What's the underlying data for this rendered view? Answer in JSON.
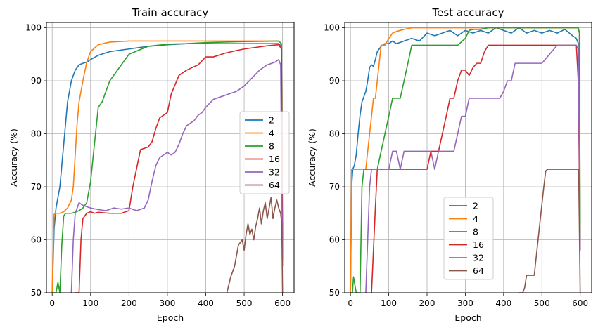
{
  "chart_data": [
    {
      "type": "line",
      "title": "Train accuracy",
      "xlabel": "Epoch",
      "ylabel": "Accuracy (%)",
      "xlim": [
        -15,
        630
      ],
      "ylim": [
        50,
        101
      ],
      "xticks": [
        0,
        100,
        200,
        300,
        400,
        500,
        600
      ],
      "yticks": [
        50,
        60,
        70,
        80,
        90,
        100
      ],
      "grid": true,
      "legend": "center-right",
      "series": [
        {
          "name": "2",
          "color": "#1f77b4",
          "x": [
            0,
            5,
            10,
            20,
            30,
            40,
            50,
            60,
            70,
            80,
            90,
            100,
            120,
            150,
            200,
            250,
            300,
            350,
            400,
            450,
            500,
            550,
            590,
            597,
            600
          ],
          "y": [
            50,
            62,
            66,
            70,
            78,
            86,
            90,
            92,
            93,
            93.3,
            93.5,
            94,
            94.8,
            95.5,
            96,
            96.5,
            96.8,
            97,
            97,
            97,
            97,
            97,
            97,
            96.5,
            60
          ]
        },
        {
          "name": "4",
          "color": "#ff7f0e",
          "x": [
            0,
            5,
            10,
            20,
            30,
            40,
            50,
            55,
            60,
            65,
            70,
            75,
            80,
            90,
            100,
            120,
            150,
            200,
            300,
            400,
            500,
            590,
            597,
            600
          ],
          "y": [
            50,
            64.8,
            65,
            65,
            65.3,
            66,
            67.5,
            70,
            76,
            82,
            86,
            88,
            90,
            93.5,
            95.5,
            96.8,
            97.3,
            97.5,
            97.5,
            97.5,
            97.5,
            97.5,
            97,
            58
          ]
        },
        {
          "name": "8",
          "color": "#2ca02c",
          "x": [
            0,
            10,
            15,
            20,
            25,
            30,
            35,
            40,
            50,
            60,
            70,
            80,
            90,
            100,
            110,
            120,
            130,
            150,
            180,
            200,
            250,
            300,
            350,
            400,
            500,
            590,
            597,
            600
          ],
          "y": [
            50,
            50,
            52,
            50,
            59,
            64.5,
            65,
            65,
            65,
            65.2,
            65.5,
            66,
            67,
            71,
            78,
            85,
            86,
            90,
            93,
            95,
            96.5,
            96.9,
            97,
            97.2,
            97.4,
            97.5,
            97,
            60
          ]
        },
        {
          "name": "16",
          "color": "#d62728",
          "x": [
            60,
            70,
            75,
            80,
            90,
            100,
            110,
            120,
            150,
            180,
            200,
            210,
            230,
            250,
            260,
            270,
            280,
            300,
            310,
            330,
            340,
            350,
            380,
            400,
            420,
            450,
            480,
            500,
            530,
            560,
            590,
            597,
            600
          ],
          "y": [
            50,
            50,
            60,
            64,
            65,
            65.3,
            65,
            65.2,
            65,
            65,
            65.5,
            70,
            77,
            77.5,
            78.5,
            81,
            83,
            84,
            87.5,
            91,
            91.5,
            92,
            93,
            94.5,
            94.5,
            95.2,
            95.7,
            96,
            96.3,
            96.6,
            96.8,
            96,
            56
          ]
        },
        {
          "name": "32",
          "color": "#9467bd",
          "x": [
            50,
            55,
            60,
            65,
            70,
            80,
            100,
            120,
            140,
            160,
            180,
            200,
            220,
            240,
            250,
            260,
            270,
            280,
            290,
            300,
            310,
            320,
            330,
            340,
            350,
            360,
            370,
            380,
            390,
            400,
            420,
            440,
            460,
            480,
            500,
            520,
            540,
            560,
            580,
            590,
            595,
            600
          ],
          "y": [
            50,
            60,
            65,
            66,
            67,
            66.5,
            66,
            65.7,
            65.5,
            66,
            65.8,
            66,
            65.5,
            66,
            67.5,
            71,
            74,
            75.5,
            76,
            76.5,
            76,
            76.5,
            78,
            80,
            81.5,
            82,
            82.5,
            83.5,
            84,
            85,
            86.5,
            87,
            87.5,
            88,
            89,
            90.5,
            92,
            93,
            93.5,
            94,
            93,
            55
          ]
        },
        {
          "name": "64",
          "color": "#8c564b",
          "x": [
            455,
            460,
            465,
            470,
            475,
            480,
            485,
            490,
            495,
            500,
            505,
            510,
            515,
            520,
            525,
            530,
            535,
            540,
            545,
            550,
            555,
            560,
            565,
            570,
            575,
            580,
            585,
            590,
            595,
            598,
            600
          ],
          "y": [
            50,
            51.5,
            53,
            54,
            55,
            57,
            59,
            59.5,
            60,
            58,
            61,
            63,
            61,
            62,
            60,
            62.5,
            64,
            66,
            63,
            65.5,
            67,
            64,
            66,
            68,
            64,
            66,
            67.5,
            66,
            65,
            63,
            50
          ]
        }
      ]
    },
    {
      "type": "line",
      "title": "Test accuracy",
      "xlabel": "Epoch",
      "ylabel": "Accuracy (%)",
      "xlim": [
        -15,
        630
      ],
      "ylim": [
        50,
        101
      ],
      "xticks": [
        0,
        100,
        200,
        300,
        400,
        500,
        600
      ],
      "yticks": [
        50,
        60,
        70,
        80,
        90,
        100
      ],
      "grid": true,
      "legend": "lower-center",
      "series": [
        {
          "name": "2",
          "color": "#1f77b4",
          "x": [
            0,
            3,
            6,
            10,
            15,
            20,
            25,
            30,
            35,
            40,
            45,
            50,
            55,
            60,
            65,
            70,
            80,
            90,
            100,
            110,
            120,
            140,
            160,
            180,
            200,
            220,
            240,
            260,
            280,
            300,
            320,
            340,
            360,
            380,
            400,
            420,
            440,
            460,
            480,
            500,
            520,
            540,
            560,
            580,
            590,
            597,
            600
          ],
          "y": [
            50,
            70,
            73.3,
            74,
            76,
            80,
            83.5,
            86,
            87,
            88,
            90,
            92.5,
            93,
            92.7,
            94,
            95.5,
            96.5,
            97,
            97,
            97.5,
            97,
            97.5,
            98,
            97.5,
            99,
            98.5,
            99,
            99.5,
            98.5,
            99.5,
            99,
            99.5,
            99,
            100,
            99.5,
            99,
            100,
            99,
            99.5,
            99,
            99.5,
            99,
            99.7,
            98.5,
            98,
            96.7,
            60
          ]
        },
        {
          "name": "4",
          "color": "#ff7f0e",
          "x": [
            0,
            3,
            5,
            40,
            45,
            50,
            55,
            60,
            65,
            70,
            75,
            80,
            90,
            100,
            110,
            120,
            140,
            160,
            180,
            200,
            300,
            400,
            500,
            595,
            598,
            600
          ],
          "y": [
            50,
            73.3,
            73.3,
            73.3,
            76.7,
            80,
            83.3,
            86.7,
            86.7,
            90,
            93.3,
            96.7,
            96.7,
            98,
            99,
            99.3,
            99.7,
            100,
            100,
            100,
            100,
            100,
            100,
            100,
            99,
            58
          ]
        },
        {
          "name": "8",
          "color": "#2ca02c",
          "x": [
            0,
            5,
            8,
            15,
            25,
            30,
            35,
            60,
            70,
            80,
            90,
            100,
            110,
            120,
            130,
            140,
            150,
            160,
            170,
            180,
            200,
            220,
            240,
            260,
            280,
            300,
            310,
            320,
            340,
            360,
            380,
            400,
            420,
            440,
            460,
            480,
            500,
            520,
            540,
            560,
            580,
            595,
            598,
            600
          ],
          "y": [
            50,
            50,
            53,
            50,
            50,
            70,
            73.3,
            73.3,
            73.3,
            76.7,
            80,
            83.3,
            86.7,
            86.7,
            86.7,
            90,
            93.3,
            96.7,
            96.7,
            96.7,
            96.7,
            96.7,
            96.7,
            96.7,
            96.7,
            98,
            99.5,
            99.7,
            99.7,
            100,
            100,
            100,
            100,
            100,
            100,
            100,
            100,
            100,
            100,
            100,
            100,
            100,
            99,
            60
          ]
        },
        {
          "name": "16",
          "color": "#d62728",
          "x": [
            55,
            60,
            65,
            70,
            80,
            100,
            150,
            200,
            210,
            220,
            230,
            240,
            250,
            260,
            270,
            280,
            290,
            300,
            310,
            320,
            330,
            340,
            350,
            360,
            380,
            400,
            450,
            500,
            550,
            590,
            595,
            600
          ],
          "y": [
            50,
            58,
            66,
            73.3,
            73.3,
            73.3,
            73.3,
            73.3,
            76.7,
            76.7,
            76.7,
            80,
            83.3,
            86.7,
            86.7,
            90,
            92,
            92,
            91,
            92.5,
            93.3,
            93.3,
            95.5,
            96.7,
            96.7,
            96.7,
            96.7,
            96.7,
            96.7,
            96.7,
            90,
            58
          ]
        },
        {
          "name": "32",
          "color": "#9467bd",
          "x": [
            40,
            45,
            50,
            55,
            60,
            80,
            90,
            100,
            110,
            120,
            130,
            140,
            150,
            160,
            170,
            180,
            190,
            200,
            210,
            220,
            230,
            250,
            270,
            280,
            290,
            300,
            310,
            320,
            330,
            340,
            350,
            360,
            370,
            380,
            390,
            400,
            410,
            420,
            430,
            440,
            460,
            480,
            500,
            520,
            540,
            560,
            580,
            590,
            595,
            600
          ],
          "y": [
            50,
            60,
            70,
            73.3,
            73.3,
            73.3,
            73.3,
            73.3,
            76.7,
            76.7,
            73.3,
            76.7,
            76.7,
            76.7,
            76.7,
            76.7,
            76.7,
            76.7,
            76.7,
            73.3,
            76.7,
            76.7,
            76.7,
            80,
            83.3,
            83.3,
            86.7,
            86.7,
            86.7,
            86.7,
            86.7,
            86.7,
            86.7,
            86.7,
            86.7,
            88,
            90,
            90,
            93.3,
            93.3,
            93.3,
            93.3,
            93.3,
            95,
            96.7,
            96.7,
            96.7,
            96.7,
            96,
            58
          ]
        },
        {
          "name": "64",
          "color": "#8c564b",
          "x": [
            440,
            450,
            455,
            460,
            470,
            480,
            490,
            500,
            505,
            510,
            515,
            520,
            530,
            540,
            550,
            560,
            570,
            580,
            590,
            596,
            600
          ],
          "y": [
            50,
            50,
            51,
            53.3,
            53.3,
            53.3,
            60,
            66.7,
            70,
            73,
            73.3,
            73.3,
            73.3,
            73.3,
            73.3,
            73.3,
            73.3,
            73.3,
            73.3,
            73.3,
            50
          ]
        }
      ]
    }
  ]
}
